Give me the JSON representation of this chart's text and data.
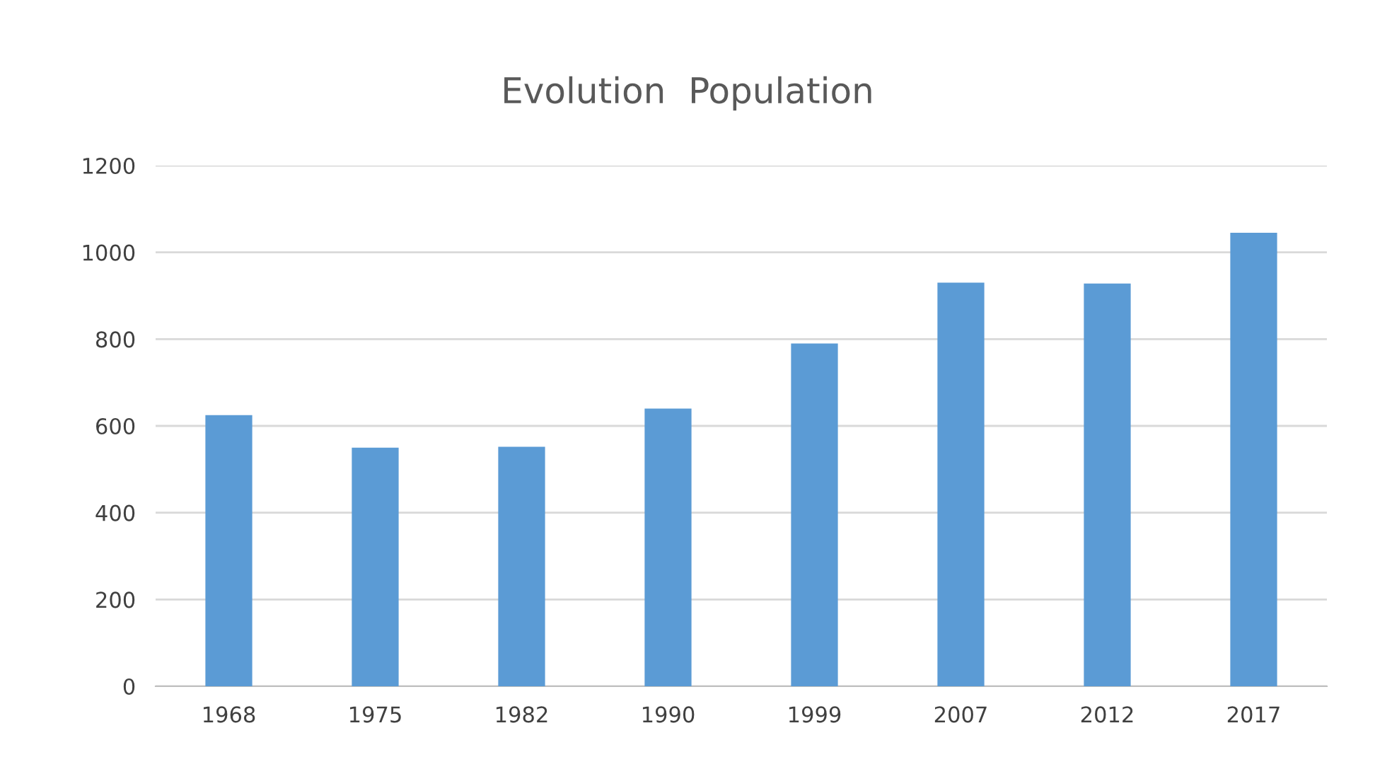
{
  "chart_data": {
    "type": "bar",
    "title": "Evolution  Population",
    "categories": [
      "1968",
      "1975",
      "1982",
      "1990",
      "1999",
      "2007",
      "2012",
      "2017"
    ],
    "values": [
      625,
      550,
      552,
      640,
      790,
      930,
      928,
      1045
    ],
    "color": "#5b9bd5",
    "ylim": [
      0,
      1200
    ],
    "yticks": [
      0,
      200,
      400,
      600,
      800,
      1000,
      1200
    ],
    "grid": "y"
  }
}
